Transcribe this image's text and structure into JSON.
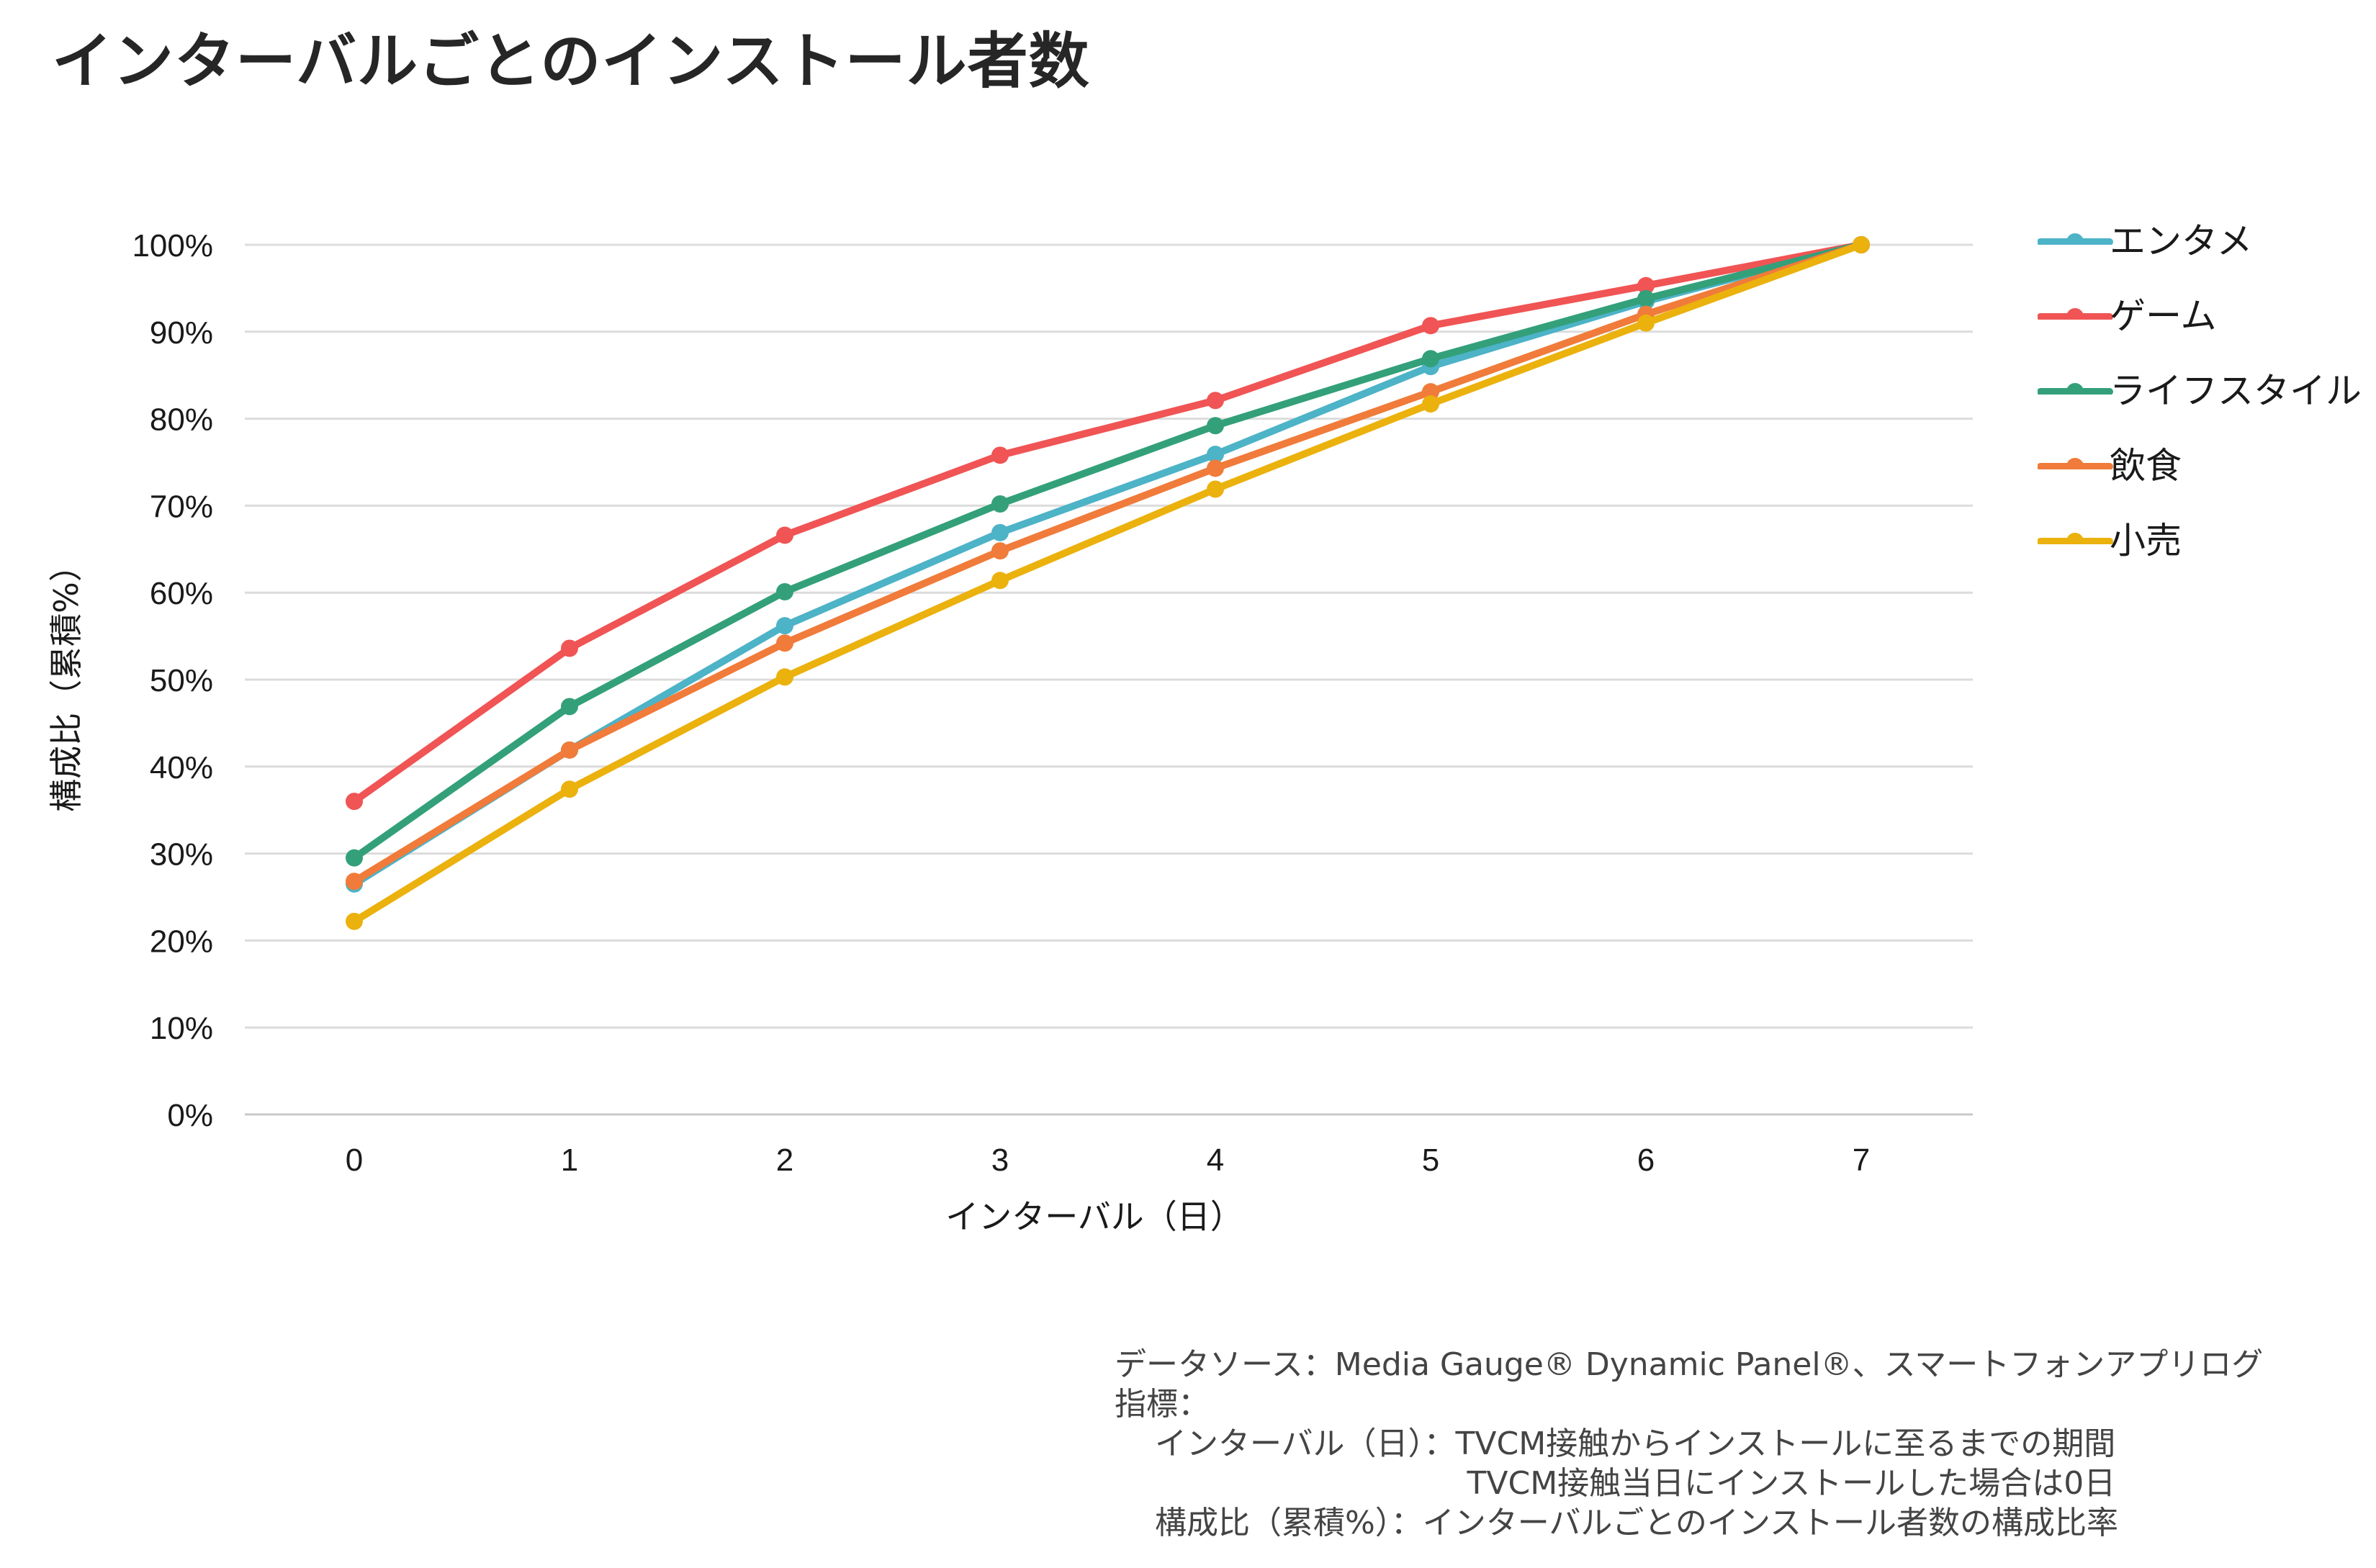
{
  "title": "インターバルごとのインストール者数",
  "chart_data": {
    "type": "line",
    "title": "インターバルごとのインストール者数",
    "xlabel": "インターバル（日）",
    "ylabel": "構成比（累積%）",
    "x": [
      0,
      1,
      2,
      3,
      4,
      5,
      6,
      7
    ],
    "ylim": [
      0,
      100
    ],
    "yticks": [
      0,
      10,
      20,
      30,
      40,
      50,
      60,
      70,
      80,
      90,
      100
    ],
    "ytick_labels": [
      "0%",
      "10%",
      "20%",
      "30%",
      "40%",
      "50%",
      "60%",
      "70%",
      "80%",
      "90%",
      "100%"
    ],
    "grid": "horizontal",
    "legend_position": "right",
    "series": [
      {
        "name": "エンタメ",
        "color": "#4db3c7",
        "values": [
          26.5,
          41.9,
          56.2,
          66.9,
          75.9,
          86.0,
          93.5,
          100
        ]
      },
      {
        "name": "ゲーム",
        "color": "#f05454",
        "values": [
          36.0,
          53.6,
          66.6,
          75.8,
          82.1,
          90.7,
          95.3,
          100
        ]
      },
      {
        "name": "ライフスタイル",
        "color": "#33a07a",
        "values": [
          29.5,
          46.9,
          60.1,
          70.2,
          79.2,
          86.9,
          93.8,
          100
        ]
      },
      {
        "name": "飲食",
        "color": "#f07b3a",
        "values": [
          26.8,
          41.9,
          54.2,
          64.8,
          74.3,
          83.1,
          92.0,
          100
        ]
      },
      {
        "name": "小売",
        "color": "#ebb10d",
        "values": [
          22.2,
          37.4,
          50.3,
          61.4,
          71.9,
          81.7,
          91.0,
          100
        ]
      }
    ]
  },
  "notes": [
    "データソース：Media Gauge® Dynamic Panel®、スマートフォンアプリログ",
    "指標：",
    "    インターバル（日）：TVCM接触からインストールに至るまでの期間",
    "                                   TVCM接触当日にインストールした場合は0日",
    "    構成比（累積%）：インターバルごとのインストール者数の構成比率"
  ]
}
